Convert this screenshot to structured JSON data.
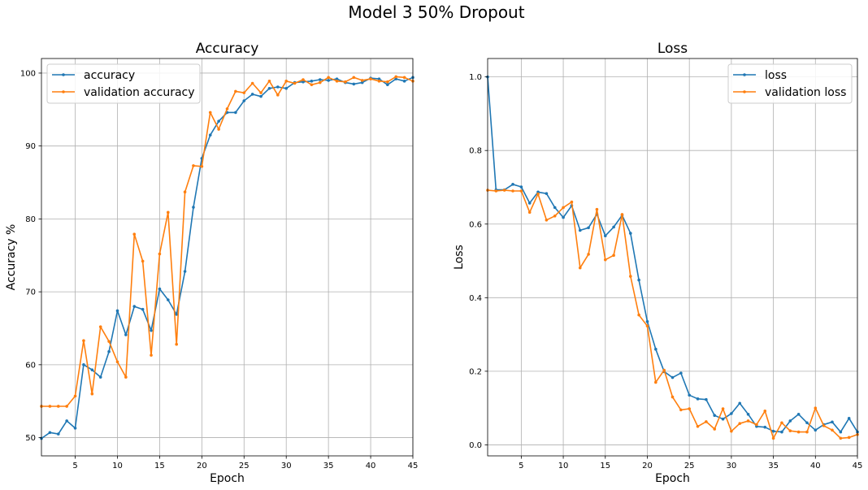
{
  "figure": {
    "suptitle": "Model 3 50% Dropout",
    "colors": {
      "series1": "#1f77b4",
      "series2": "#ff7f0e"
    }
  },
  "chart_data": [
    {
      "type": "line",
      "title": "Accuracy",
      "xlabel": "Epoch",
      "ylabel": "Accuracy %",
      "xlim": [
        1,
        45
      ],
      "ylim": [
        47.5,
        102
      ],
      "xticks": [
        5,
        10,
        15,
        20,
        25,
        30,
        35,
        40,
        45
      ],
      "yticks": [
        50,
        60,
        70,
        80,
        90,
        100
      ],
      "grid": true,
      "legend": "top-left",
      "x": [
        1,
        2,
        3,
        4,
        5,
        6,
        7,
        8,
        9,
        10,
        11,
        12,
        13,
        14,
        15,
        16,
        17,
        18,
        19,
        20,
        21,
        22,
        23,
        24,
        25,
        26,
        27,
        28,
        29,
        30,
        31,
        32,
        33,
        34,
        35,
        36,
        37,
        38,
        39,
        40,
        41,
        42,
        43,
        44,
        45
      ],
      "series": [
        {
          "name": "accuracy",
          "values": [
            49.9,
            50.7,
            50.5,
            52.3,
            51.3,
            60.0,
            59.3,
            58.3,
            61.8,
            67.4,
            64.1,
            68.0,
            67.6,
            64.7,
            70.4,
            68.9,
            66.9,
            72.8,
            81.6,
            88.3,
            91.5,
            93.4,
            94.6,
            94.6,
            96.2,
            97.1,
            96.8,
            97.9,
            98.1,
            97.9,
            98.7,
            98.8,
            98.9,
            99.1,
            99.0,
            99.2,
            98.7,
            98.5,
            98.7,
            99.3,
            99.2,
            98.4,
            99.2,
            98.9,
            99.4
          ]
        },
        {
          "name": "validation accuracy",
          "values": [
            54.3,
            54.3,
            54.3,
            54.3,
            55.7,
            63.3,
            56.0,
            65.2,
            63.2,
            60.4,
            58.3,
            77.9,
            74.2,
            61.3,
            75.2,
            80.9,
            62.8,
            83.7,
            87.3,
            87.2,
            94.6,
            92.3,
            95.1,
            97.5,
            97.3,
            98.6,
            97.3,
            98.9,
            97.0,
            98.9,
            98.6,
            99.1,
            98.4,
            98.7,
            99.4,
            98.9,
            98.8,
            99.4,
            99.0,
            99.2,
            98.9,
            98.8,
            99.5,
            99.4,
            98.9
          ]
        }
      ]
    },
    {
      "type": "line",
      "title": "Loss",
      "xlabel": "Epoch",
      "ylabel": "Loss",
      "xlim": [
        1,
        45
      ],
      "ylim": [
        -0.03,
        1.05
      ],
      "xticks": [
        5,
        10,
        15,
        20,
        25,
        30,
        35,
        40,
        45
      ],
      "yticks": [
        "0.0",
        "0.2",
        "0.4",
        "0.6",
        "0.8",
        "1.0"
      ],
      "grid": true,
      "legend": "top-right",
      "x": [
        1,
        2,
        3,
        4,
        5,
        6,
        7,
        8,
        9,
        10,
        11,
        12,
        13,
        14,
        15,
        16,
        17,
        18,
        19,
        20,
        21,
        22,
        23,
        24,
        25,
        26,
        27,
        28,
        29,
        30,
        31,
        32,
        33,
        34,
        35,
        36,
        37,
        38,
        39,
        40,
        41,
        42,
        43,
        44,
        45
      ],
      "series": [
        {
          "name": "loss",
          "values": [
            1.0,
            0.693,
            0.693,
            0.708,
            0.701,
            0.657,
            0.687,
            0.683,
            0.645,
            0.618,
            0.65,
            0.583,
            0.59,
            0.627,
            0.568,
            0.592,
            0.624,
            0.575,
            0.448,
            0.335,
            0.26,
            0.199,
            0.183,
            0.195,
            0.135,
            0.125,
            0.123,
            0.08,
            0.07,
            0.085,
            0.113,
            0.083,
            0.05,
            0.048,
            0.037,
            0.035,
            0.065,
            0.083,
            0.06,
            0.04,
            0.055,
            0.062,
            0.035,
            0.072,
            0.035
          ]
        },
        {
          "name": "validation loss",
          "values": [
            0.692,
            0.69,
            0.692,
            0.69,
            0.69,
            0.632,
            0.682,
            0.611,
            0.622,
            0.645,
            0.66,
            0.481,
            0.518,
            0.64,
            0.503,
            0.515,
            0.626,
            0.458,
            0.353,
            0.323,
            0.17,
            0.203,
            0.13,
            0.095,
            0.098,
            0.05,
            0.063,
            0.043,
            0.098,
            0.037,
            0.058,
            0.065,
            0.055,
            0.092,
            0.018,
            0.06,
            0.038,
            0.035,
            0.035,
            0.1,
            0.052,
            0.04,
            0.018,
            0.02,
            0.028
          ]
        }
      ]
    }
  ]
}
